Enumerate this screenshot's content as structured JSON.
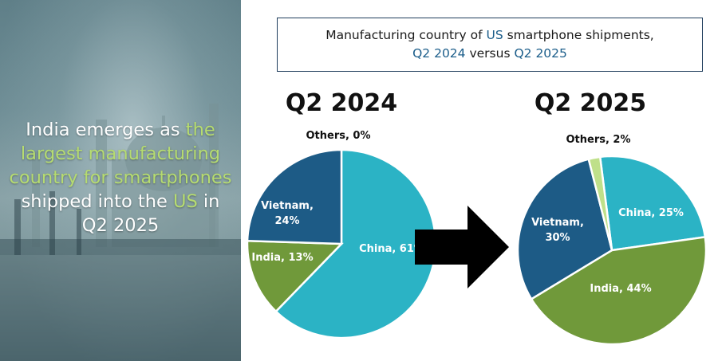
{
  "headline": {
    "p1": "India emerges as ",
    "p2": "the largest manufacturing country for smartphones",
    "p3": " shipped into the ",
    "p4": "US",
    "p5": " in Q2 2025"
  },
  "title": {
    "line1_a": "Manufacturing country of ",
    "line1_b": "US",
    "line1_c": " smartphone shipments,",
    "line2_a": "Q2 2024",
    "line2_b": " versus ",
    "line2_c": "Q2 2025"
  },
  "chart_data": [
    {
      "type": "pie",
      "title": "Q2 2024",
      "categories": [
        "China",
        "India",
        "Vietnam",
        "Others"
      ],
      "values": [
        61,
        13,
        24,
        0
      ],
      "labels": [
        "China, 61%",
        "India, 13%",
        "Vietnam, 24%",
        "Others, 0%"
      ],
      "colors": [
        "#2bb3c5",
        "#70993a",
        "#1d5b86",
        "#bfe08a"
      ]
    },
    {
      "type": "pie",
      "title": "Q2 2025",
      "categories": [
        "China",
        "India",
        "Vietnam",
        "Others"
      ],
      "values": [
        25,
        44,
        30,
        2
      ],
      "labels": [
        "China, 25%",
        "India, 44%",
        "Vietnam, 30%",
        "Others, 2%"
      ],
      "colors": [
        "#2bb3c5",
        "#70993a",
        "#1d5b86",
        "#bfe08a"
      ]
    }
  ]
}
